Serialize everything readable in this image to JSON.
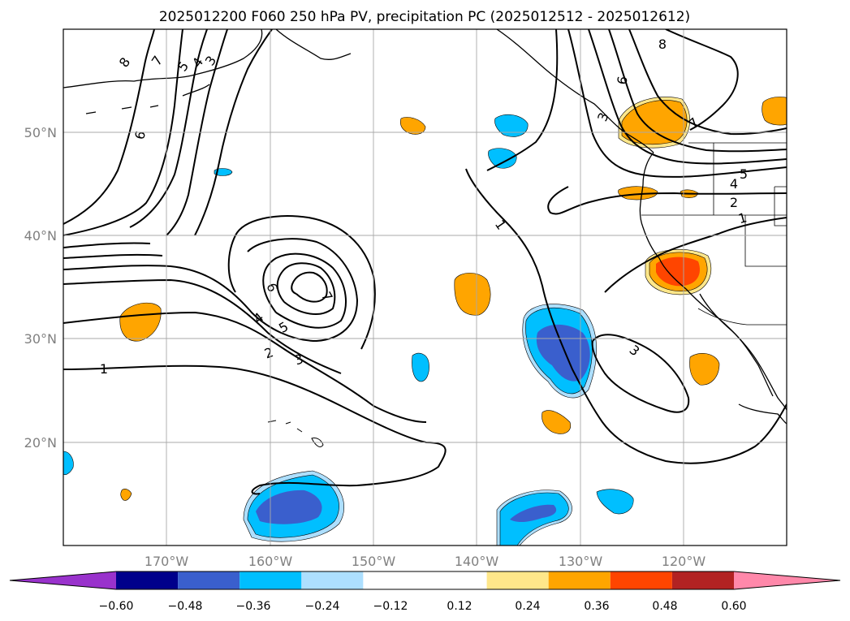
{
  "chart_data": {
    "type": "map",
    "title": "2025012200 F060 250 hPa PV, precipitation PC (2025012512 - 2025012612)",
    "x_ticks": [
      "170°W",
      "160°W",
      "150°W",
      "140°W",
      "130°W",
      "120°W"
    ],
    "y_ticks": [
      "50°N",
      "40°N",
      "30°N",
      "20°N"
    ],
    "lon_range": [
      -180,
      -110
    ],
    "lat_range": [
      10,
      60
    ],
    "grid": true,
    "colorbar": {
      "orientation": "horizontal",
      "extend": "both",
      "ticks": [
        "−0.60",
        "−0.48",
        "−0.36",
        "−0.24",
        "−0.12",
        "0.12",
        "0.24",
        "0.36",
        "0.48",
        "0.60"
      ],
      "boundaries": [
        -0.6,
        -0.48,
        -0.36,
        -0.24,
        -0.12,
        0.12,
        0.24,
        0.36,
        0.48,
        0.6
      ],
      "colors": [
        "#9932CC",
        "#00008B",
        "#3A5FCD",
        "#00BFFF",
        "#ADDFFF",
        "#FFFFFF",
        "#FFE78A",
        "#FFA500",
        "#FF4500",
        "#B22222",
        "#FF88AA"
      ]
    },
    "contour_labels": [
      "8",
      "7",
      "5",
      "4",
      "3",
      "6",
      "1",
      "6",
      "7",
      "5",
      "4",
      "3",
      "2",
      "3",
      "1",
      "3",
      "6",
      "8",
      "7",
      "5",
      "4",
      "2",
      "1"
    ]
  }
}
